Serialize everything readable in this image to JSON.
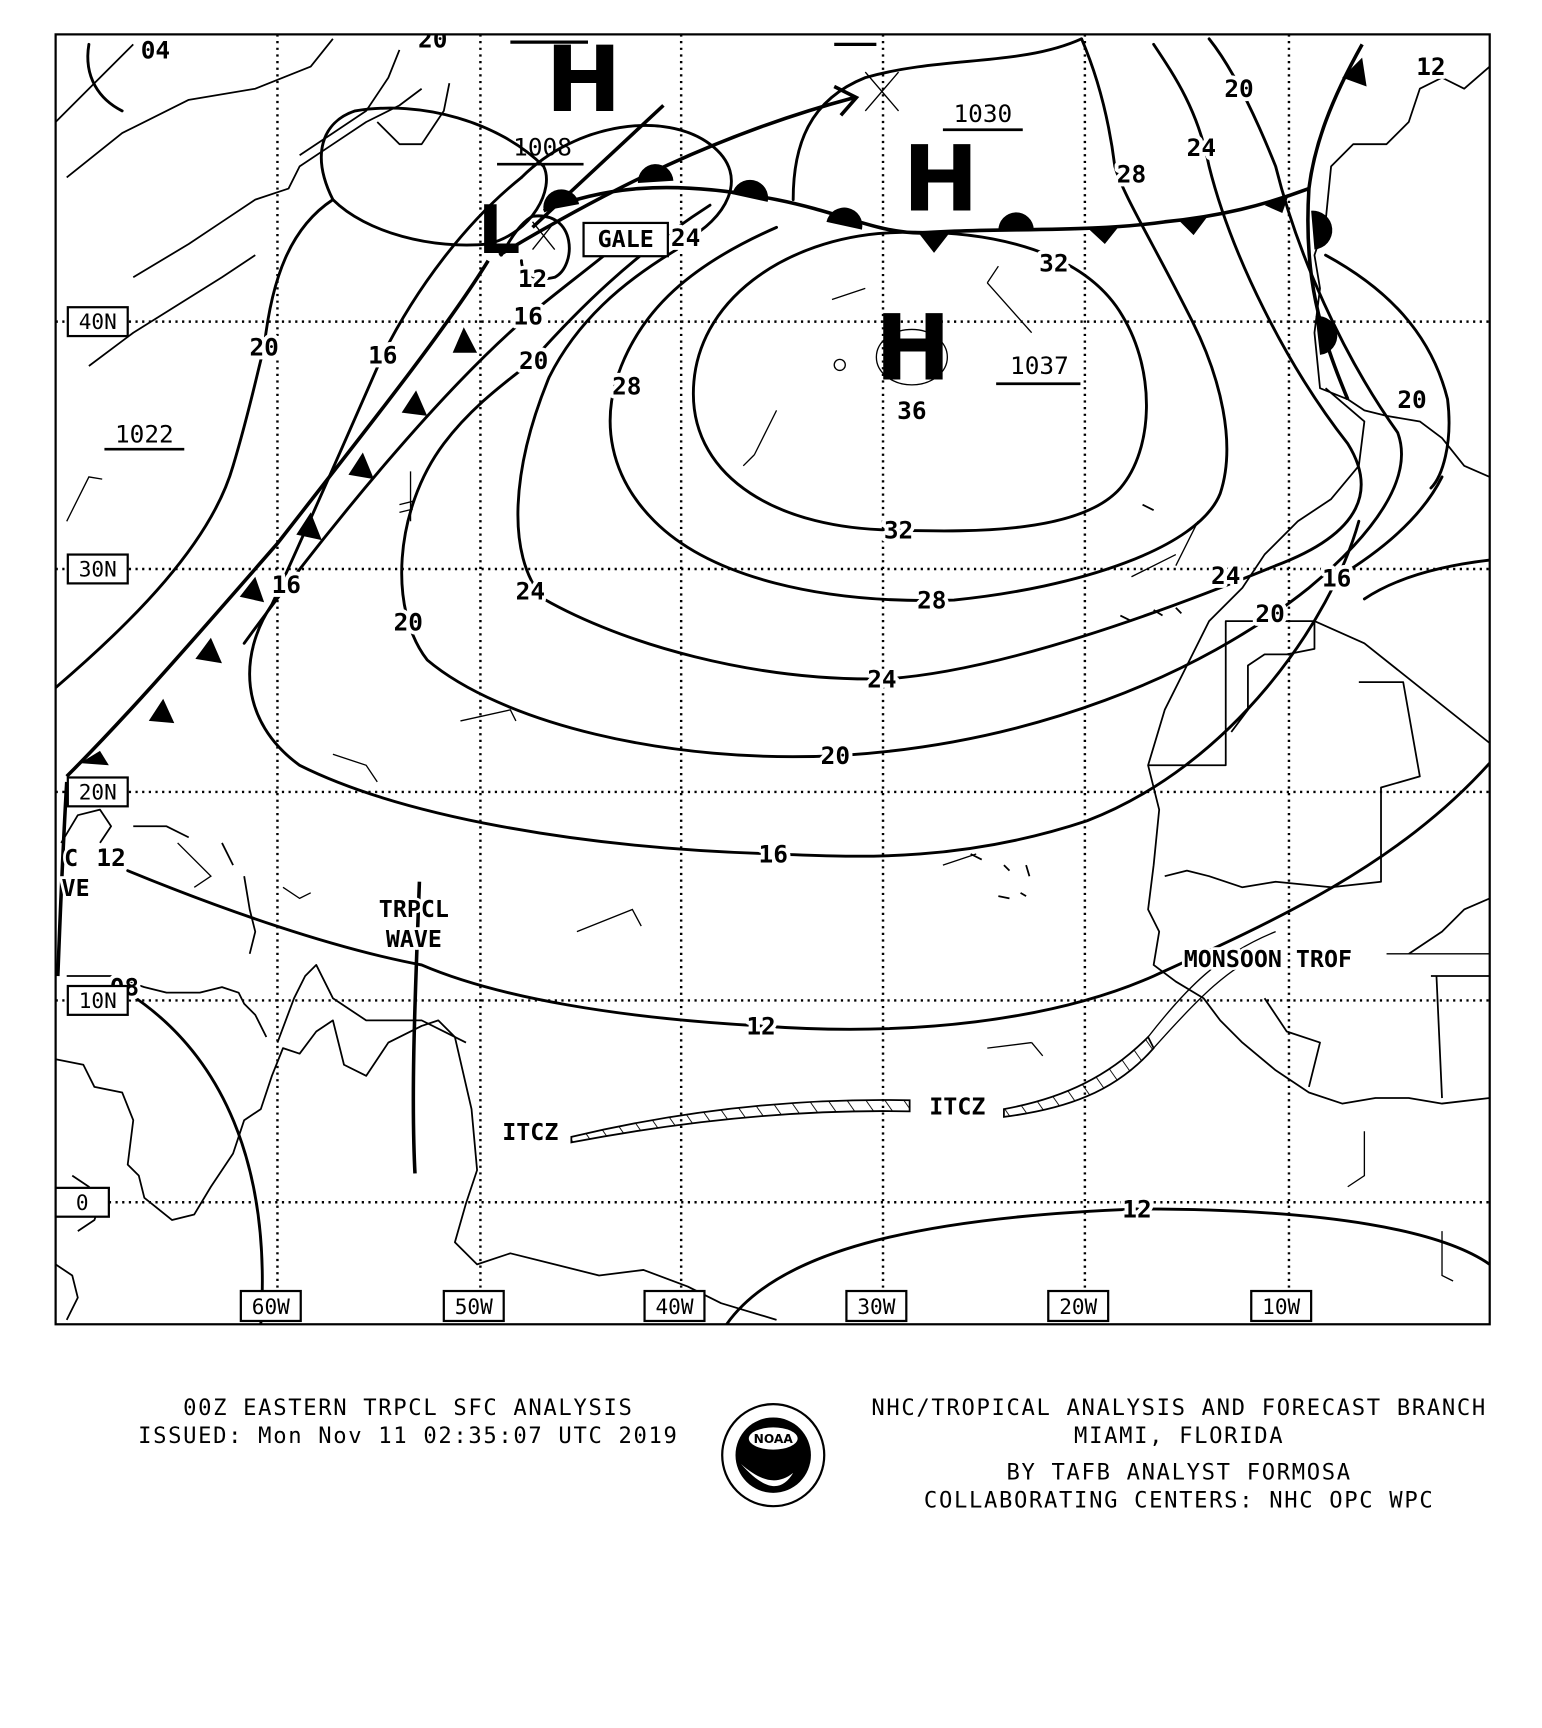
{
  "map": {
    "lat_labels": [
      "40N",
      "30N",
      "20N",
      "10N",
      "0"
    ],
    "lon_labels": [
      "60W",
      "50W",
      "40W",
      "30W",
      "20W",
      "10W"
    ],
    "pressure_centers": [
      {
        "symbol": "H",
        "value": ""
      },
      {
        "symbol": "H",
        "value": "1030"
      },
      {
        "symbol": "H",
        "value": "1037"
      },
      {
        "symbol": "L",
        "value": "1008"
      },
      {
        "symbol": "",
        "value": "1022"
      }
    ],
    "isobar_labels": [
      "20",
      "24",
      "28",
      "32",
      "24",
      "12",
      "16",
      "20",
      "28",
      "16",
      "20",
      "36",
      "32",
      "28",
      "24",
      "24",
      "20",
      "16",
      "20",
      "16",
      "12",
      "12",
      "24",
      "20",
      "16",
      "20",
      "12",
      "08",
      "04",
      "12",
      "20"
    ],
    "features": {
      "gale": "GALE",
      "itcz_west": "ITCZ",
      "itcz_east": "ITCZ",
      "tropical_wave_line1": "TRPCL",
      "tropical_wave_line2": "WAVE",
      "monsoon_trough": "MONSOON TROF",
      "partial_wave_line1": "C",
      "partial_wave_line2": "VE"
    }
  },
  "footer": {
    "product": "00Z EASTERN TRPCL SFC ANALYSIS",
    "issued": "ISSUED: Mon Nov 11 02:35:07 UTC 2019",
    "office": "NHC/TROPICAL ANALYSIS AND FORECAST BRANCH",
    "location": "MIAMI,  FLORIDA",
    "analyst": "BY TAFB ANALYST  FORMOSA",
    "collaborating": "COLLABORATING CENTERS: NHC OPC WPC",
    "logo_text": "NOAA"
  }
}
